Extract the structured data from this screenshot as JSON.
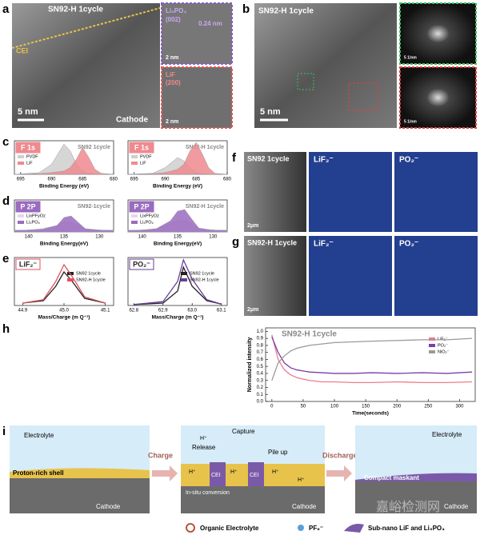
{
  "panels": {
    "a": {
      "label": "a",
      "title": "SN92-H 1cycle",
      "cei": "CEI",
      "scale": "5 nm",
      "cathode": "Cathode",
      "inset_top": {
        "phase": "Li₃PO₄",
        "plane": "(002)",
        "spacing": "0.24 nm",
        "scale": "2 nm"
      },
      "inset_bottom": {
        "phase": "LiF",
        "plane": "(200)",
        "scale": "2 nm"
      }
    },
    "b": {
      "label": "b",
      "title": "SN92-H 1cycle",
      "scale": "5 nm",
      "fft_scale": "5 1/nm"
    },
    "f": {
      "label": "f",
      "title": "SN92 1cycle",
      "scale": "2μm",
      "map1": "LiF₂⁻",
      "map2": "PO₂⁻"
    },
    "g": {
      "label": "g",
      "title": "SN92-H 1cycle",
      "scale": "2μm",
      "map1": "LiF₂⁻",
      "map2": "PO₂⁻"
    },
    "i": {
      "label": "i",
      "electrolyte": "Electrolyte",
      "shell": "Proton-rich shell",
      "cathode": "Cathode",
      "charge": "Charge",
      "capture": "Capture",
      "release": "Release",
      "pile_up": "Pile up",
      "proton": "H⁺",
      "cei": "CEI",
      "conversion": "In-situ conversion",
      "discharge": "Discharge",
      "maskant": "Compact maskant",
      "legend": [
        "Organic Electrolyte",
        "PF₆⁻",
        "Sub-nano LiF and Li₃PO₄"
      ]
    },
    "watermark": "嘉峪检测网"
  },
  "chart_data": [
    {
      "type": "area",
      "panel": "c",
      "tag": "F 1s",
      "tag_color": "#ef8a8f",
      "title": "SN92 1cycle",
      "xlabel": "Binding Energy (eV)",
      "x": [
        696,
        692,
        690,
        688,
        687,
        686,
        685,
        684,
        683,
        682,
        680
      ],
      "xlim": [
        696,
        680
      ],
      "xticks": [
        695,
        690,
        685,
        680
      ],
      "ylim": [
        0,
        1
      ],
      "legend": "upper-left",
      "series": [
        {
          "name": "PVDF",
          "color": "#cfcfcf",
          "values": [
            0,
            0.05,
            0.3,
            0.9,
            0.7,
            0.3,
            0.1,
            0.03,
            0.01,
            0,
            0
          ]
        },
        {
          "name": "LiF",
          "color": "#ef8a8f",
          "values": [
            0,
            0.02,
            0.05,
            0.1,
            0.2,
            0.45,
            0.8,
            0.5,
            0.15,
            0.03,
            0
          ]
        }
      ]
    },
    {
      "type": "area",
      "tag": "F 1s",
      "tag_color": "#ef8a8f",
      "title": "SN92-H 1cycle",
      "xlabel": "Binding Energy (eV)",
      "x": [
        696,
        692,
        690,
        688,
        687,
        686,
        685,
        684,
        683,
        682,
        680
      ],
      "xlim": [
        696,
        680
      ],
      "xticks": [
        695,
        690,
        685,
        680
      ],
      "ylim": [
        0,
        1
      ],
      "legend": "upper-left",
      "series": [
        {
          "name": "PVDF",
          "color": "#cfcfcf",
          "values": [
            0,
            0.03,
            0.2,
            0.5,
            0.4,
            0.2,
            0.05,
            0.02,
            0,
            0,
            0
          ]
        },
        {
          "name": "LiF",
          "color": "#ef8a8f",
          "values": [
            0,
            0.02,
            0.05,
            0.15,
            0.3,
            0.7,
            0.95,
            0.6,
            0.2,
            0.03,
            0
          ]
        }
      ]
    },
    {
      "type": "area",
      "panel": "d",
      "tag": "P 2P",
      "tag_color": "#9a6bbf",
      "title": "SN92-1cycle",
      "xlabel": "Binding Energy(eV)",
      "x": [
        142,
        140,
        138,
        136,
        135,
        134,
        133,
        132,
        130,
        128
      ],
      "xlim": [
        142,
        128
      ],
      "xticks": [
        140,
        135,
        130
      ],
      "ylim": [
        0,
        1
      ],
      "legend": "upper-left",
      "series": [
        {
          "name": "LixPFyOz",
          "color": "#e6d6ef",
          "values": [
            0.05,
            0.06,
            0.1,
            0.2,
            0.3,
            0.3,
            0.2,
            0.1,
            0.06,
            0.05
          ]
        },
        {
          "name": "Li₃PO₄",
          "color": "#9a6bbf",
          "values": [
            0.05,
            0.05,
            0.08,
            0.2,
            0.45,
            0.5,
            0.3,
            0.1,
            0.05,
            0.05
          ]
        }
      ]
    },
    {
      "type": "area",
      "tag": "P 2P",
      "tag_color": "#9a6bbf",
      "title": "SN92-H 1cycle",
      "xlabel": "Binding Energy(eV)",
      "x": [
        142,
        140,
        138,
        136,
        135,
        134,
        133,
        132,
        130,
        128
      ],
      "xlim": [
        142,
        128
      ],
      "xticks": [
        140,
        135,
        130
      ],
      "ylim": [
        0,
        1
      ],
      "legend": "upper-left",
      "series": [
        {
          "name": "LixPFyOz",
          "color": "#e6d6ef",
          "values": [
            0.05,
            0.06,
            0.1,
            0.25,
            0.35,
            0.35,
            0.25,
            0.1,
            0.06,
            0.05
          ]
        },
        {
          "name": "Li₃PO₄",
          "color": "#9a6bbf",
          "values": [
            0.05,
            0.05,
            0.1,
            0.35,
            0.65,
            0.7,
            0.4,
            0.12,
            0.05,
            0.05
          ]
        }
      ]
    },
    {
      "type": "line",
      "panel": "e",
      "tag": "LiF₂⁻",
      "tag_color": "#e05060",
      "xlabel": "Mass/Charge (m Q⁻¹)",
      "x": [
        44.9,
        44.95,
        44.98,
        45.0,
        45.02,
        45.05,
        45.1
      ],
      "xlim": [
        44.88,
        45.12
      ],
      "xticks": [
        44.9,
        {
          "value": 45.0,
          "label": "45.0"
        },
        45.1
      ],
      "ylim": [
        0,
        1
      ],
      "legend": "upper-right",
      "series": [
        {
          "name": "SN92 1cycle",
          "color": "#222222",
          "values": [
            0.05,
            0.1,
            0.4,
            0.7,
            0.5,
            0.15,
            0.05
          ]
        },
        {
          "name": "SN92-H 1cycle",
          "color": "#e05060",
          "values": [
            0.05,
            0.12,
            0.5,
            0.85,
            0.6,
            0.18,
            0.05
          ]
        }
      ]
    },
    {
      "type": "line",
      "tag": "PO₂⁻",
      "tag_color": "#6a3d9a",
      "xlabel": "Mass/Charge (m Q⁻¹)",
      "x": [
        62.8,
        62.9,
        62.95,
        62.97,
        63.0,
        63.05,
        63.1
      ],
      "xlim": [
        62.78,
        63.12
      ],
      "xticks": [
        62.8,
        62.9,
        {
          "value": 63,
          "label": "63.0"
        },
        63.1
      ],
      "ylim": [
        0,
        1
      ],
      "legend": "upper-right",
      "series": [
        {
          "name": "SN92 1cycle",
          "color": "#222222",
          "values": [
            0.02,
            0.05,
            0.3,
            0.8,
            0.4,
            0.1,
            0.03
          ]
        },
        {
          "name": "SN92-H 1cycle",
          "color": "#6a3d9a",
          "values": [
            0.02,
            0.08,
            0.5,
            0.95,
            0.55,
            0.12,
            0.03
          ]
        }
      ]
    },
    {
      "type": "line",
      "panel": "h",
      "title": "SN92-H 1cycle",
      "xlabel": "Time(seconds)",
      "ylabel": "Normalized intensity",
      "x": [
        0,
        10,
        20,
        30,
        40,
        60,
        80,
        100,
        130,
        160,
        200,
        240,
        280,
        320
      ],
      "xlim": [
        -10,
        325
      ],
      "xticks": [
        0,
        50,
        100,
        150,
        200,
        250,
        300
      ],
      "ylim": [
        0,
        1.05
      ],
      "yticks": [
        {
          "value": 0,
          "label": "0.0"
        },
        0.1,
        0.2,
        0.3,
        0.4,
        0.5,
        0.6,
        0.7,
        0.8,
        0.9,
        {
          "value": 1,
          "label": "1.0"
        }
      ],
      "legend": "upper-right",
      "series": [
        {
          "name": "LiF₂⁻",
          "color": "#ef7b8c",
          "values": [
            0.95,
            0.6,
            0.45,
            0.38,
            0.34,
            0.3,
            0.28,
            0.28,
            0.27,
            0.27,
            0.28,
            0.27,
            0.27,
            0.28
          ]
        },
        {
          "name": "PO₂⁻",
          "color": "#7a3fa8",
          "values": [
            0.92,
            0.7,
            0.55,
            0.48,
            0.45,
            0.42,
            0.41,
            0.4,
            0.4,
            0.41,
            0.4,
            0.41,
            0.4,
            0.42
          ]
        },
        {
          "name": "NiO₂⁻",
          "color": "#9a9a9a",
          "values": [
            0.3,
            0.55,
            0.65,
            0.72,
            0.76,
            0.8,
            0.82,
            0.84,
            0.85,
            0.86,
            0.87,
            0.88,
            0.88,
            0.9
          ]
        }
      ]
    }
  ]
}
